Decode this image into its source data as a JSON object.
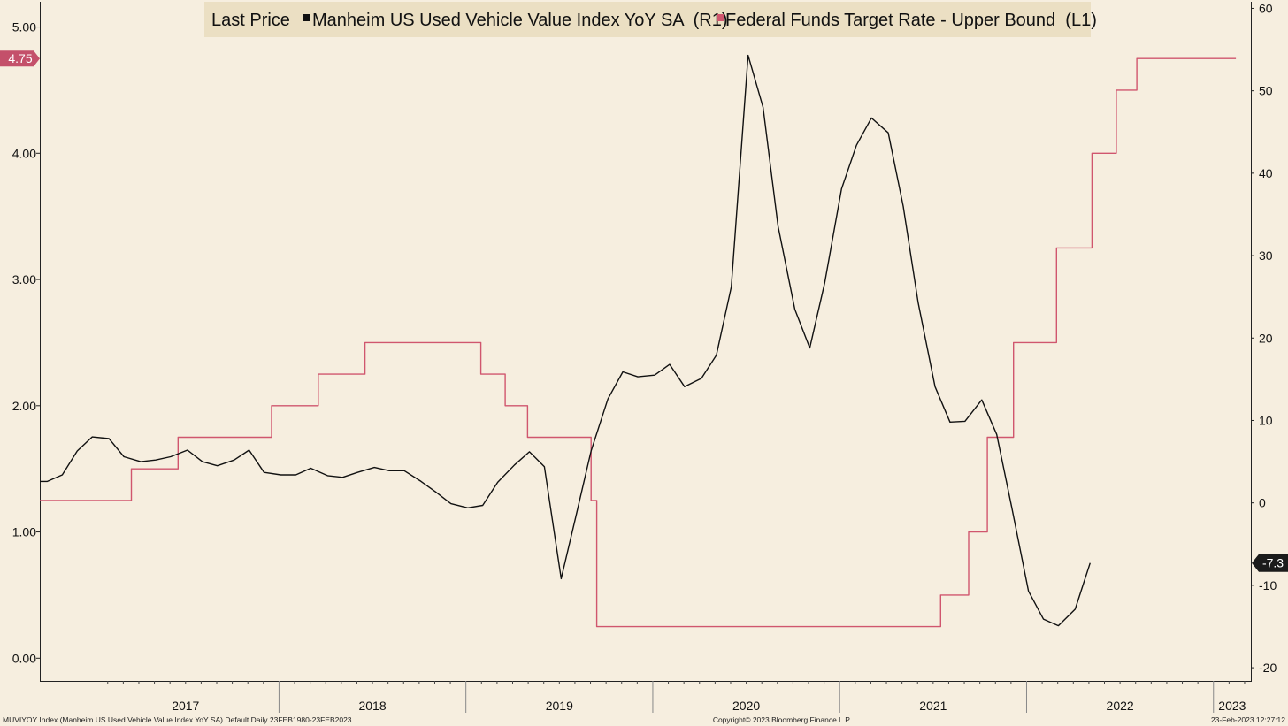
{
  "legend": {
    "prefix": "Last Price",
    "items": [
      {
        "label": "Manheim US Used Vehicle Value Index YoY SA  (R1)",
        "color": "#111111",
        "marker": "square"
      },
      {
        "label": "Federal Funds Target Rate - Upper Bound  (L1)",
        "color": "#d0566e",
        "marker": "square"
      }
    ]
  },
  "footer": {
    "left": "MUVIYOY Index (Manheim US Used Vehicle Value Index YoY SA) Default  Daily 23FEB1980-23FEB2023",
    "center": "Copyright© 2023 Bloomberg Finance L.P.",
    "right": "23-Feb-2023 12:27:12"
  },
  "colors": {
    "background": "#f6eedf",
    "legend_bg": "#ebdfc3",
    "fed_line": "#d0566e",
    "manheim_line": "#111111"
  },
  "chart_data": {
    "type": "line",
    "background": "cream",
    "grid": false,
    "legend_position": "top-center",
    "x_axis": {
      "unit": "year",
      "range": [
        2016.72,
        2023.2
      ],
      "year_labels": [
        "2017",
        "2018",
        "2019",
        "2020",
        "2021",
        "2022",
        "2023"
      ]
    },
    "y_left": {
      "range": [
        -0.18,
        5.2
      ],
      "ticks": [
        "0.00",
        "1.00",
        "2.00",
        "3.00",
        "4.00",
        "5.00"
      ]
    },
    "y_right": {
      "range": [
        -21.6,
        60.8
      ],
      "ticks": [
        "-20",
        "-10",
        "0",
        "10",
        "20",
        "30",
        "40",
        "50",
        "60"
      ]
    },
    "last_value_tags": [
      {
        "series": "Federal Funds Target Rate - Upper Bound",
        "axis": "left",
        "value": 4.75,
        "label": "4.75"
      },
      {
        "series": "Manheim US Used Vehicle Value Index YoY SA",
        "axis": "right",
        "value": -7.3,
        "label": "-7.3"
      }
    ],
    "series": [
      {
        "name": "Federal Funds Target Rate - Upper Bound",
        "axis": "left",
        "style": "step",
        "color": "#d0566e",
        "start": 2016.72,
        "end": 2023.12,
        "initial": 1.25,
        "steps": [
          {
            "x": 2017.21,
            "y": 1.5
          },
          {
            "x": 2017.46,
            "y": 1.75
          },
          {
            "x": 2017.96,
            "y": 2.0
          },
          {
            "x": 2018.21,
            "y": 2.25
          },
          {
            "x": 2018.46,
            "y": 2.5
          },
          {
            "x": 2019.08,
            "y": 2.25
          },
          {
            "x": 2019.21,
            "y": 2.0
          },
          {
            "x": 2019.33,
            "y": 1.75
          },
          {
            "x": 2019.67,
            "y": 1.25
          },
          {
            "x": 2019.7,
            "y": 0.25
          },
          {
            "x": 2021.54,
            "y": 0.5
          },
          {
            "x": 2021.69,
            "y": 1.0
          },
          {
            "x": 2021.79,
            "y": 1.75
          },
          {
            "x": 2021.93,
            "y": 2.5
          },
          {
            "x": 2022.16,
            "y": 3.25
          },
          {
            "x": 2022.35,
            "y": 4.0
          },
          {
            "x": 2022.48,
            "y": 4.5
          },
          {
            "x": 2022.59,
            "y": 4.75
          }
        ]
      },
      {
        "name": "Manheim US Used Vehicle Value Index YoY SA",
        "axis": "right",
        "style": "line",
        "color": "#111111",
        "points": [
          [
            2016.72,
            2.6
          ],
          [
            2016.76,
            2.6
          ],
          [
            2016.84,
            3.4
          ],
          [
            2016.92,
            6.3
          ],
          [
            2017.0,
            8.0
          ],
          [
            2017.09,
            7.8
          ],
          [
            2017.17,
            5.6
          ],
          [
            2017.26,
            5.0
          ],
          [
            2017.34,
            5.2
          ],
          [
            2017.42,
            5.6
          ],
          [
            2017.51,
            6.4
          ],
          [
            2017.59,
            5.0
          ],
          [
            2017.67,
            4.5
          ],
          [
            2017.76,
            5.2
          ],
          [
            2017.84,
            6.4
          ],
          [
            2017.92,
            3.7
          ],
          [
            2018.01,
            3.4
          ],
          [
            2018.09,
            3.4
          ],
          [
            2018.17,
            4.2
          ],
          [
            2018.26,
            3.3
          ],
          [
            2018.34,
            3.1
          ],
          [
            2018.42,
            3.7
          ],
          [
            2018.51,
            4.3
          ],
          [
            2018.59,
            3.9
          ],
          [
            2018.67,
            3.9
          ],
          [
            2018.76,
            2.6
          ],
          [
            2018.84,
            1.3
          ],
          [
            2018.92,
            -0.1
          ],
          [
            2019.01,
            -0.6
          ],
          [
            2019.09,
            -0.3
          ],
          [
            2019.17,
            2.5
          ],
          [
            2019.26,
            4.6
          ],
          [
            2019.34,
            6.2
          ],
          [
            2019.42,
            4.4
          ],
          [
            2019.51,
            -9.2
          ],
          [
            2019.59,
            -1.5
          ],
          [
            2019.67,
            6.3
          ],
          [
            2019.76,
            12.6
          ],
          [
            2019.84,
            15.9
          ],
          [
            2019.92,
            15.3
          ],
          [
            2020.01,
            15.5
          ],
          [
            2020.09,
            16.8
          ],
          [
            2020.17,
            14.1
          ],
          [
            2020.26,
            15.1
          ],
          [
            2020.34,
            17.9
          ],
          [
            2020.42,
            26.2
          ],
          [
            2020.51,
            54.3
          ],
          [
            2020.59,
            48.0
          ],
          [
            2020.67,
            33.6
          ],
          [
            2020.76,
            23.5
          ],
          [
            2020.84,
            18.8
          ],
          [
            2020.92,
            26.7
          ],
          [
            2021.01,
            38.1
          ],
          [
            2021.09,
            43.4
          ],
          [
            2021.17,
            46.7
          ],
          [
            2021.26,
            44.9
          ],
          [
            2021.34,
            36.0
          ],
          [
            2021.42,
            24.3
          ],
          [
            2021.51,
            14.1
          ],
          [
            2021.59,
            9.8
          ],
          [
            2021.67,
            9.9
          ],
          [
            2021.76,
            12.5
          ],
          [
            2021.84,
            8.3
          ],
          [
            2021.92,
            -0.5
          ],
          [
            2022.01,
            -10.7
          ],
          [
            2022.09,
            -14.1
          ],
          [
            2022.17,
            -14.9
          ],
          [
            2022.26,
            -12.9
          ],
          [
            2022.34,
            -7.3
          ]
        ]
      }
    ]
  }
}
